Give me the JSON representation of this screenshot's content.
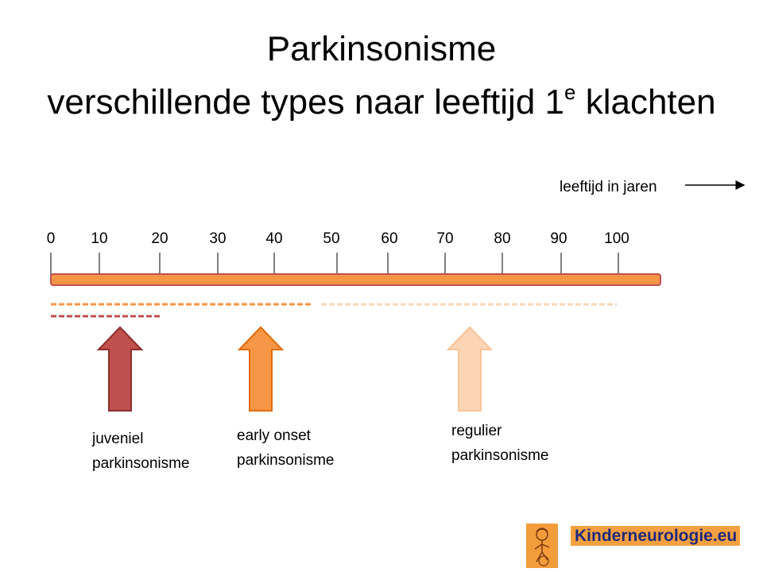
{
  "title": {
    "line1": "Parkinsonisme",
    "line2_main": "verschillende types naar leeftijd 1",
    "line2_sup": "e",
    "line2_end": " klachten"
  },
  "axis": {
    "caption": "leeftijd in jaren",
    "ticks": [
      "0",
      "10",
      "20",
      "30",
      "40",
      "50",
      "60",
      "70",
      "80",
      "90",
      "100"
    ]
  },
  "types": [
    {
      "id": "juveniel",
      "line1": "juveniel",
      "line2": "parkinsonisme",
      "color": "#c0504d"
    },
    {
      "id": "early",
      "line1": "early onset",
      "line2": "parkinsonisme",
      "color": "#f79646"
    },
    {
      "id": "regulier",
      "line1": "regulier",
      "line2": "parkinsonisme",
      "color": "#fbd5b5"
    }
  ],
  "logo": {
    "text": "Kinderneurologie.eu",
    "bg_color": "#f5a040",
    "text_color": "#1f2a7a"
  },
  "colors": {
    "bar_fill": "#f79646",
    "bar_stroke": "#c0504d",
    "arrow_juveniel": "#c0504d",
    "arrow_early": "#f79646",
    "arrow_regulier": "#fbd5b5"
  }
}
